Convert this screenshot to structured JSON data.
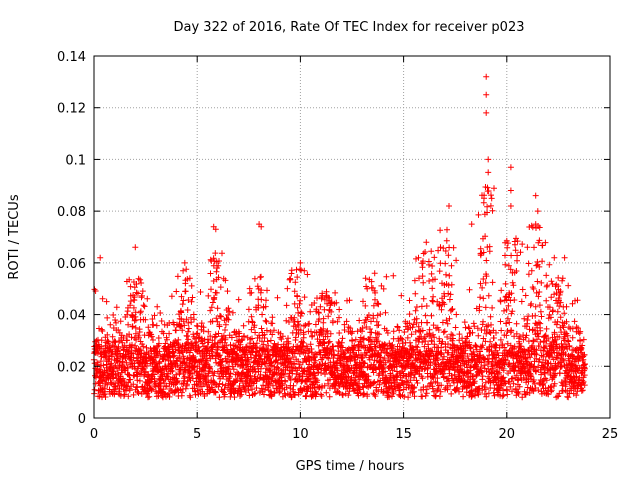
{
  "chart_data": {
    "type": "scatter",
    "title": "Day 322 of 2016, Rate Of TEC Index for receiver p023",
    "xlabel": "GPS time / hours",
    "ylabel": "ROTI / TECUs",
    "xlim": [
      0,
      25
    ],
    "ylim": [
      0,
      0.14
    ],
    "xticks": [
      0,
      5,
      10,
      15,
      20,
      25
    ],
    "yticks": [
      0,
      0.02,
      0.04,
      0.06,
      0.08,
      0.1,
      0.12,
      0.14
    ],
    "xtick_labels": [
      "0",
      "5",
      "10",
      "15",
      "20",
      "25"
    ],
    "ytick_labels": [
      "0",
      "0.02",
      "0.04",
      "0.06",
      "0.08",
      "0.1",
      "0.12",
      "0.14"
    ],
    "grid": true,
    "marker": "+",
    "series": [
      {
        "name": "ROTI",
        "color": "#ff0000",
        "x_range": [
          0,
          23.8
        ],
        "base_level": 0.018,
        "spread": 0.01,
        "notable_points": [
          {
            "x": 19.0,
            "y": 0.132
          },
          {
            "x": 19.0,
            "y": 0.125
          },
          {
            "x": 19.0,
            "y": 0.118
          },
          {
            "x": 19.1,
            "y": 0.1
          },
          {
            "x": 19.1,
            "y": 0.095
          },
          {
            "x": 20.2,
            "y": 0.097
          },
          {
            "x": 20.2,
            "y": 0.088
          },
          {
            "x": 20.2,
            "y": 0.082
          },
          {
            "x": 21.4,
            "y": 0.086
          },
          {
            "x": 21.5,
            "y": 0.08
          },
          {
            "x": 21.4,
            "y": 0.075
          },
          {
            "x": 17.2,
            "y": 0.082
          },
          {
            "x": 8.0,
            "y": 0.075
          },
          {
            "x": 8.1,
            "y": 0.074
          },
          {
            "x": 5.8,
            "y": 0.074
          },
          {
            "x": 5.9,
            "y": 0.073
          },
          {
            "x": 2.0,
            "y": 0.066
          },
          {
            "x": 0.3,
            "y": 0.062
          },
          {
            "x": 4.4,
            "y": 0.06
          },
          {
            "x": 10.0,
            "y": 0.06
          },
          {
            "x": 16.1,
            "y": 0.068
          },
          {
            "x": 18.3,
            "y": 0.075
          },
          {
            "x": 22.3,
            "y": 0.062
          },
          {
            "x": 22.8,
            "y": 0.062
          },
          {
            "x": 13.6,
            "y": 0.056
          },
          {
            "x": 14.5,
            "y": 0.055
          }
        ],
        "bursts": [
          {
            "x": 2.0,
            "y_max": 0.055
          },
          {
            "x": 4.5,
            "y_max": 0.058
          },
          {
            "x": 6.0,
            "y_max": 0.065
          },
          {
            "x": 8.0,
            "y_max": 0.055
          },
          {
            "x": 9.8,
            "y_max": 0.058
          },
          {
            "x": 11.2,
            "y_max": 0.05
          },
          {
            "x": 13.6,
            "y_max": 0.055
          },
          {
            "x": 16.0,
            "y_max": 0.065
          },
          {
            "x": 17.0,
            "y_max": 0.075
          },
          {
            "x": 19.0,
            "y_max": 0.09
          },
          {
            "x": 20.2,
            "y_max": 0.07
          },
          {
            "x": 21.5,
            "y_max": 0.075
          },
          {
            "x": 22.5,
            "y_max": 0.055
          }
        ]
      }
    ]
  }
}
